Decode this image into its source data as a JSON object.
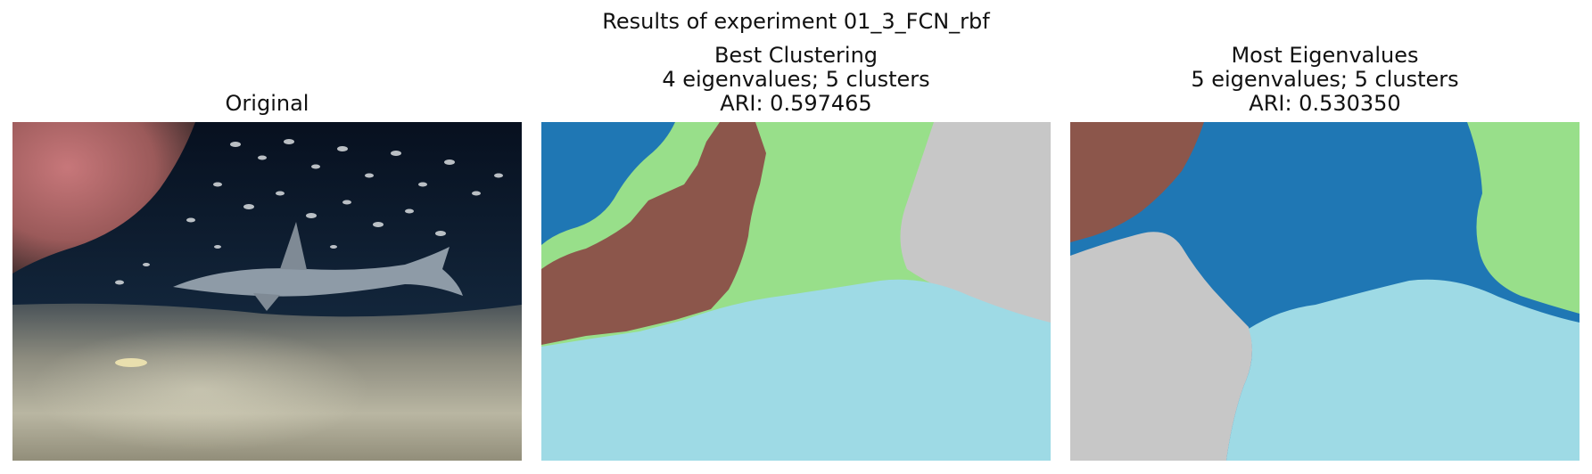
{
  "figure": {
    "title": "Results of experiment 01_3_FCN_rbf"
  },
  "panels": [
    {
      "title_lines": [
        "Original"
      ]
    },
    {
      "title_lines": [
        "Best Clustering",
        "4 eigenvalues; 5 clusters",
        "ARI: 0.597465"
      ]
    },
    {
      "title_lines": [
        "Most Eigenvalues",
        "5 eigenvalues; 5 clusters",
        "ARI: 0.530350"
      ]
    }
  ],
  "cluster_colors": {
    "blue": "#1f77b4",
    "light_green": "#98df8a",
    "brown": "#8c564b",
    "gray": "#c7c7c7",
    "light_cyan": "#9edae5"
  },
  "photo_colors": {
    "water_deep": "#07101f",
    "water_mid": "#12253a",
    "rock": "#b4666a",
    "sand": "#a9a58f",
    "shark": "#8e9ba7"
  }
}
